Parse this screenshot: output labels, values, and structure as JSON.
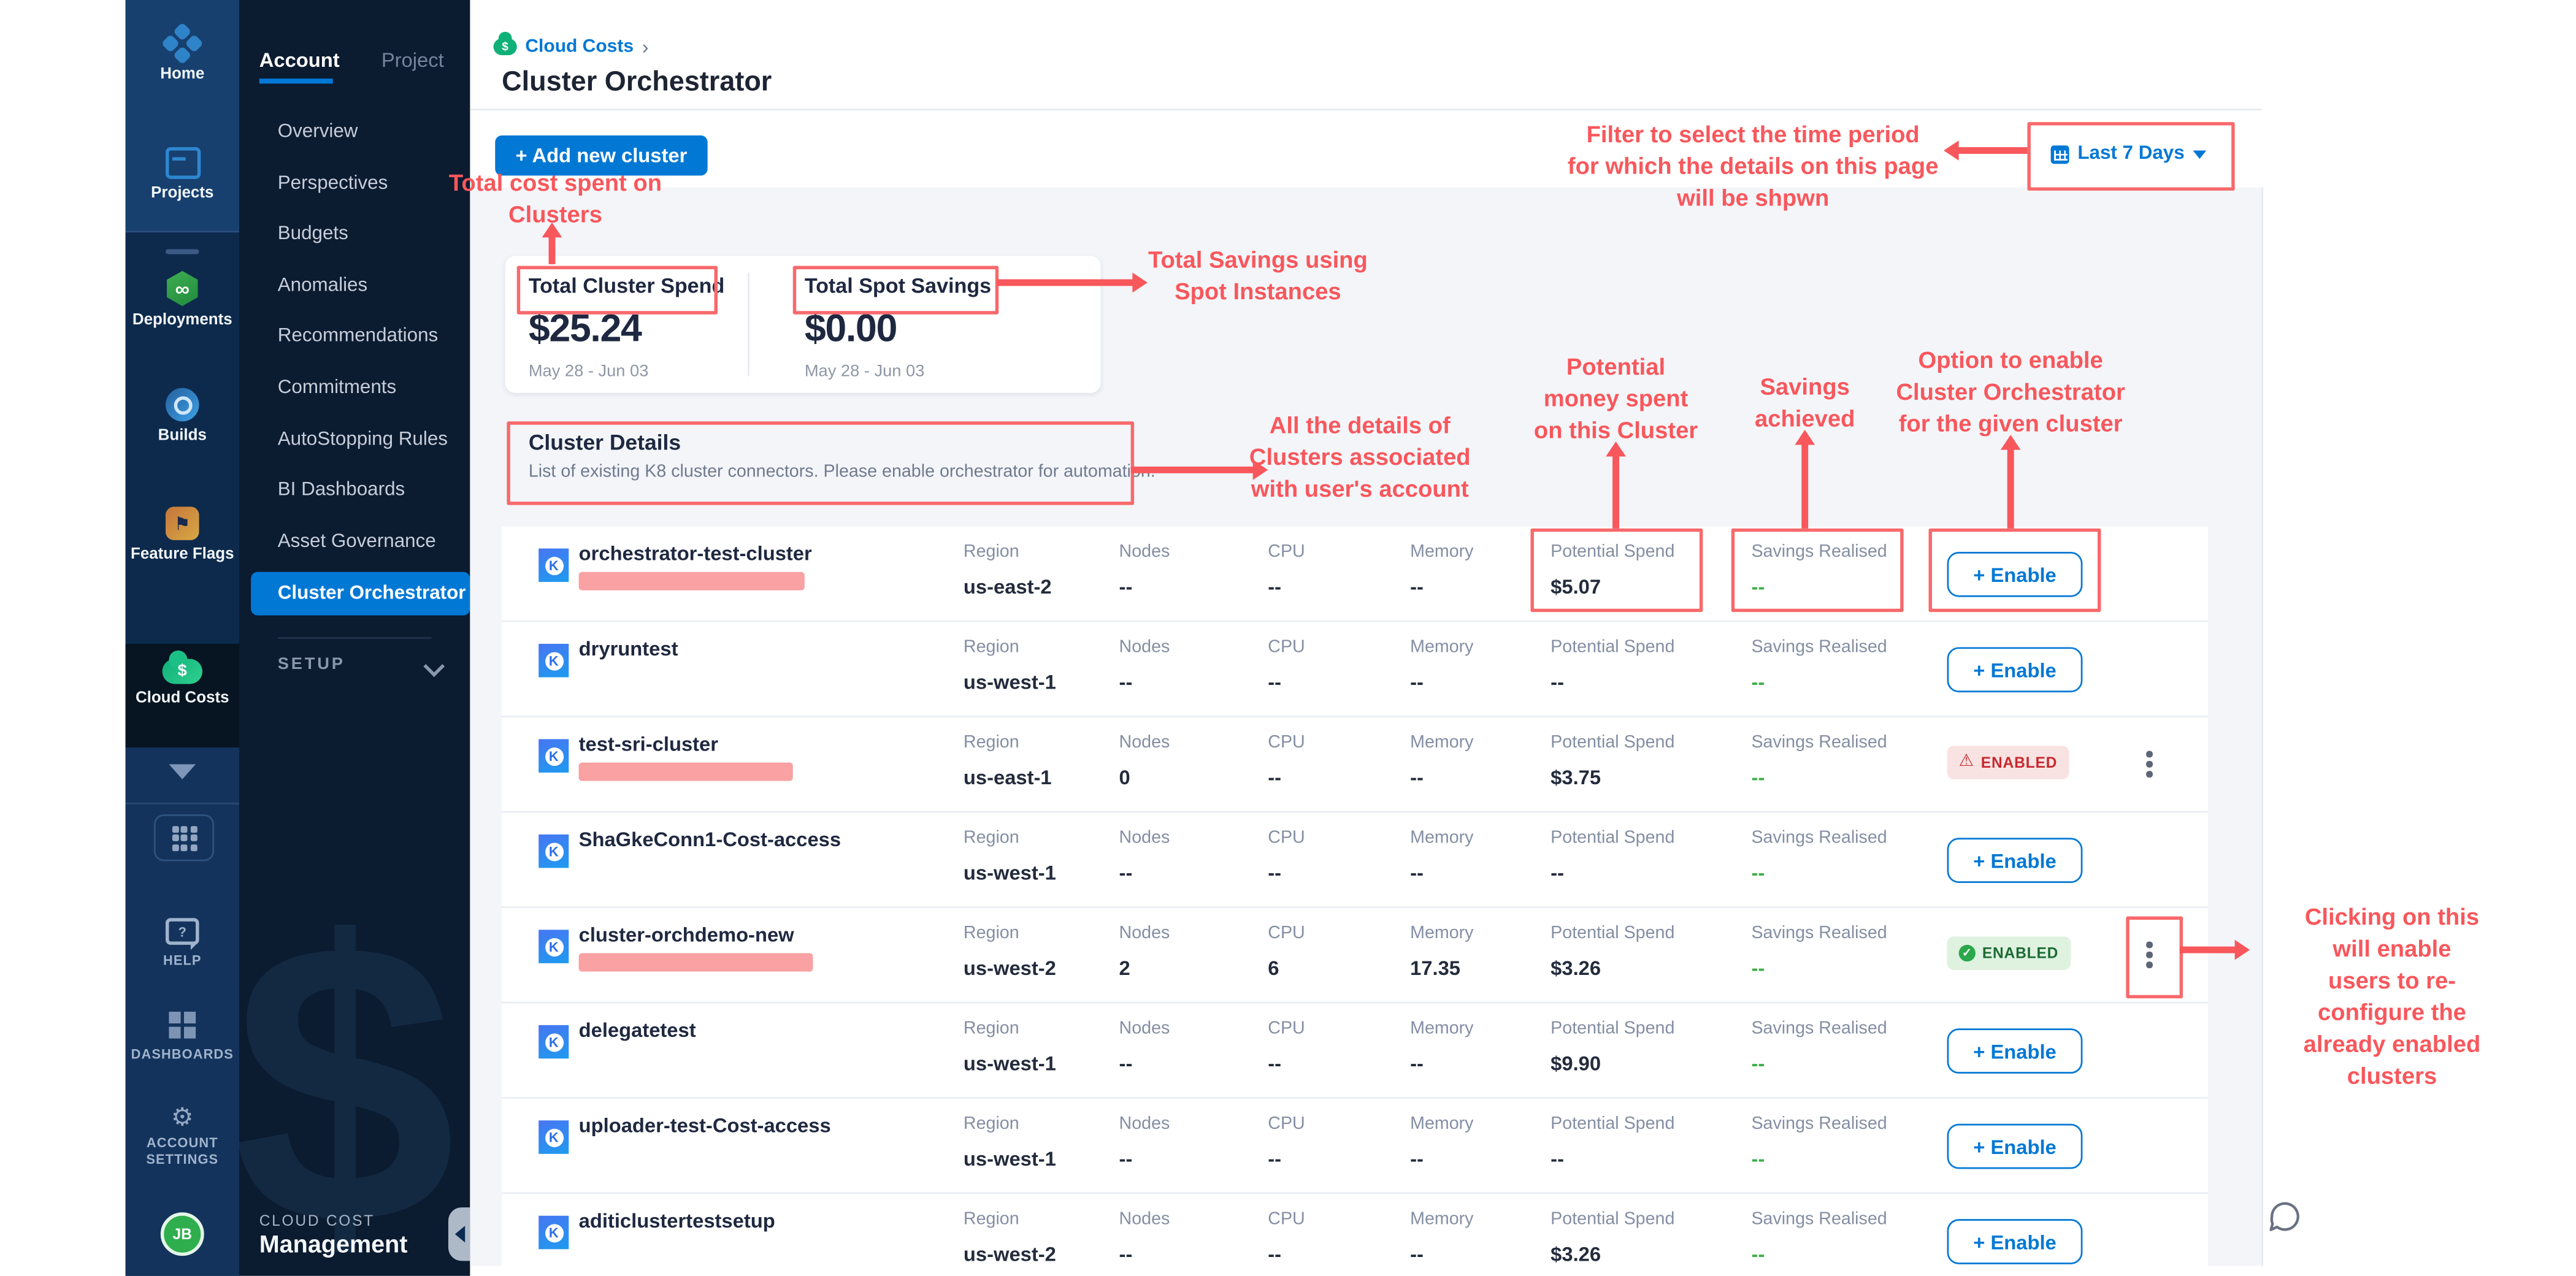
{
  "colors": {
    "accent_blue": "#0278D5",
    "annotation_red": "#F8575C",
    "sidebar_navy": "#0D2A4C",
    "nav_navy": "#0B1B30",
    "success_green": "#2BA84A",
    "danger_red": "#C7292F",
    "redaction_pink": "#F9A1A3"
  },
  "module_sidebar": {
    "modules": [
      {
        "label": "Home"
      },
      {
        "label": "Projects"
      },
      {
        "label": "Deployments"
      },
      {
        "label": "Builds"
      },
      {
        "label": "Feature Flags"
      },
      {
        "label": "Cloud Costs"
      }
    ],
    "bottom": [
      {
        "label": "HELP"
      },
      {
        "label": "DASHBOARDS"
      },
      {
        "label": "ACCOUNT\nSETTINGS"
      }
    ],
    "avatar": "JB"
  },
  "nav": {
    "tabs": [
      {
        "label": "Account"
      },
      {
        "label": "Project"
      }
    ],
    "items": [
      {
        "label": "Overview"
      },
      {
        "label": "Perspectives"
      },
      {
        "label": "Budgets"
      },
      {
        "label": "Anomalies"
      },
      {
        "label": "Recommendations"
      },
      {
        "label": "Commitments"
      },
      {
        "label": "AutoStopping Rules"
      },
      {
        "label": "BI Dashboards"
      },
      {
        "label": "Asset Governance"
      },
      {
        "label": "Cluster Orchestrator"
      }
    ],
    "selected": "Cluster Orchestrator",
    "setup": "SETUP",
    "footer_eyebrow": "CLOUD COST",
    "footer_title": "Management",
    "watermark": "$"
  },
  "header": {
    "breadcrumb": "Cloud Costs",
    "breadcrumb_sep": "›",
    "title": "Cluster Orchestrator"
  },
  "actions": {
    "add_button": "+ Add new cluster",
    "date_filter": "Last 7 Days"
  },
  "totals": {
    "cards": [
      {
        "label": "Total Cluster Spend",
        "value": "$25.24",
        "range": "May 28 - Jun 03"
      },
      {
        "label": "Total Spot Savings",
        "value": "$0.00",
        "range": "May 28 - Jun 03"
      }
    ]
  },
  "cluster_details": {
    "title": "Cluster Details",
    "subtitle": "List of existing K8 cluster connectors. Please enable orchestrator for automation."
  },
  "table": {
    "col_labels": {
      "region": "Region",
      "nodes": "Nodes",
      "cpu": "CPU",
      "memory": "Memory",
      "potential": "Potential Spend",
      "savings": "Savings Realised"
    },
    "enable_label": "+ Enable",
    "enabled_label": "ENABLED",
    "rows": [
      {
        "name": "orchestrator-test-cluster",
        "redacted": true,
        "redact_w": 135,
        "region": "us-east-2",
        "nodes": "--",
        "cpu": "--",
        "memory": "--",
        "potential": "$5.07",
        "savings": "--",
        "action": "enable",
        "kebab": false,
        "kebab_highlight": false
      },
      {
        "name": "dryruntest",
        "redacted": false,
        "redact_w": 0,
        "region": "us-west-1",
        "nodes": "--",
        "cpu": "--",
        "memory": "--",
        "potential": "--",
        "savings": "--",
        "action": "enable",
        "kebab": false,
        "kebab_highlight": false
      },
      {
        "name": "test-sri-cluster",
        "redacted": true,
        "redact_w": 128,
        "region": "us-east-1",
        "nodes": "0",
        "cpu": "--",
        "memory": "--",
        "potential": "$3.75",
        "savings": "--",
        "action": "enabled-error",
        "kebab": true,
        "kebab_highlight": false
      },
      {
        "name": "ShaGkeConn1-Cost-access",
        "redacted": false,
        "redact_w": 0,
        "region": "us-west-1",
        "nodes": "--",
        "cpu": "--",
        "memory": "--",
        "potential": "--",
        "savings": "--",
        "action": "enable",
        "kebab": false,
        "kebab_highlight": false
      },
      {
        "name": "cluster-orchdemo-new",
        "redacted": true,
        "redact_w": 140,
        "region": "us-west-2",
        "nodes": "2",
        "cpu": "6",
        "memory": "17.35",
        "potential": "$3.26",
        "savings": "--",
        "action": "enabled-success",
        "kebab": true,
        "kebab_highlight": true
      },
      {
        "name": "delegatetest",
        "redacted": false,
        "redact_w": 0,
        "region": "us-west-1",
        "nodes": "--",
        "cpu": "--",
        "memory": "--",
        "potential": "$9.90",
        "savings": "--",
        "action": "enable",
        "kebab": false,
        "kebab_highlight": false
      },
      {
        "name": "uploader-test-Cost-access",
        "redacted": false,
        "redact_w": 0,
        "region": "us-west-1",
        "nodes": "--",
        "cpu": "--",
        "memory": "--",
        "potential": "--",
        "savings": "--",
        "action": "enable",
        "kebab": false,
        "kebab_highlight": false
      },
      {
        "name": "aditiclustertestsetup",
        "redacted": false,
        "redact_w": 0,
        "region": "us-west-2",
        "nodes": "--",
        "cpu": "--",
        "memory": "--",
        "potential": "$3.26",
        "savings": "--",
        "action": "enable",
        "kebab": false,
        "kebab_highlight": false
      }
    ]
  },
  "annotations": {
    "add_note": "Total cost spent on\nClusters",
    "filter_note": "Filter to select the time period\nfor which the details on this page\nwill be shpwn",
    "spot_note": "Total Savings using\nSpot Instances",
    "details_note": "All the details of\nClusters associated\nwith user's account",
    "potential_note": "Potential\nmoney spent\non this Cluster",
    "savings_note": "Savings\nachieved",
    "enable_note": "Option to enable\nCluster Orchestrator\nfor the given cluster",
    "kebab_note": "Clicking on this will enable\nusers to re-configure the\nalready enabled clusters"
  }
}
